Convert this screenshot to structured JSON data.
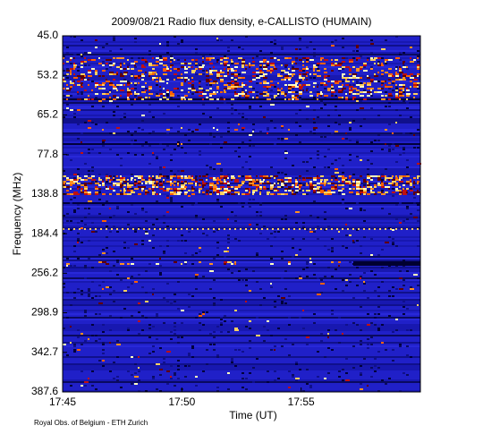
{
  "chart_data": {
    "type": "spectrogram",
    "title": "2009/08/21  Radio flux density, e-CALLISTO (HUMAIN)",
    "xlabel": "Time (UT)",
    "ylabel": "Frequency (MHz)",
    "ytick_labels": [
      "45.0",
      "53.2",
      "65.2",
      "77.8",
      "138.8",
      "184.4",
      "256.2",
      "298.9",
      "342.7",
      "387.6"
    ],
    "xtick_labels": [
      "17:45",
      "17:50",
      "17:55"
    ],
    "footer": "Royal Obs. of Belgium - ETH Zurich"
  }
}
